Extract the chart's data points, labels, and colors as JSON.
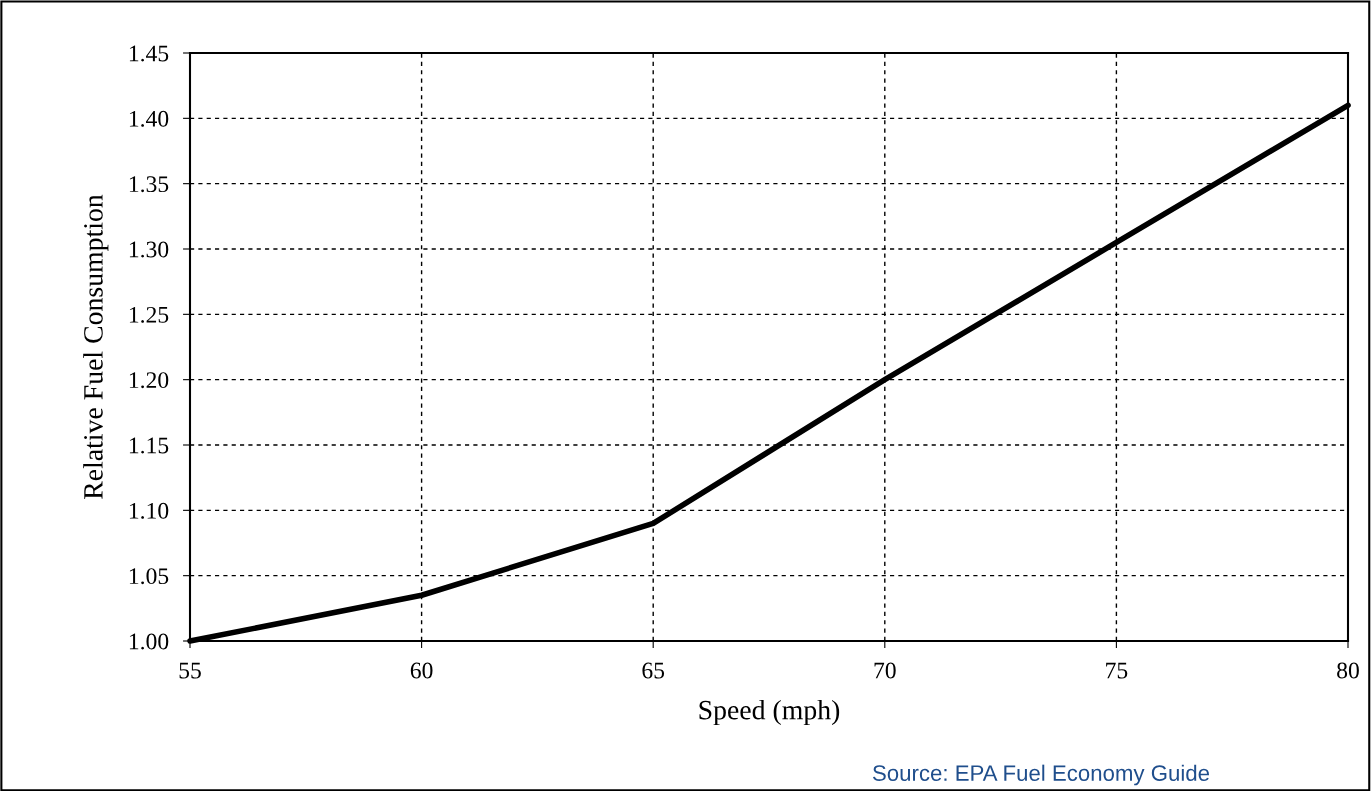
{
  "chart_data": {
    "type": "line",
    "xlabel": "Speed (mph)",
    "ylabel": "Relative Fuel Consumption",
    "x": [
      55,
      60,
      65,
      70,
      75,
      80
    ],
    "series": [
      {
        "color": "#000000",
        "values": [
          1.0,
          1.035,
          1.09,
          1.2,
          1.305,
          1.41
        ]
      }
    ],
    "xlim": [
      55,
      80
    ],
    "xticks": [
      55,
      60,
      65,
      70,
      75,
      80
    ],
    "ylim": [
      1.0,
      1.45
    ],
    "yticks": [
      {
        "value": 1.0,
        "label": "1.00"
      },
      {
        "value": 1.05,
        "label": "1.05"
      },
      {
        "value": 1.1,
        "label": "1.10"
      },
      {
        "value": 1.15,
        "label": "1.15"
      },
      {
        "value": 1.2,
        "label": "1.20"
      },
      {
        "value": 1.25,
        "label": "1.25"
      },
      {
        "value": 1.3,
        "label": "1.30"
      },
      {
        "value": 1.35,
        "label": "1.35"
      },
      {
        "value": 1.4,
        "label": "1.40"
      },
      {
        "value": 1.45,
        "label": "1.45"
      }
    ],
    "grid": true,
    "line_style": "solid",
    "annotations": [
      "Source: EPA Fuel Economy Guide"
    ]
  }
}
